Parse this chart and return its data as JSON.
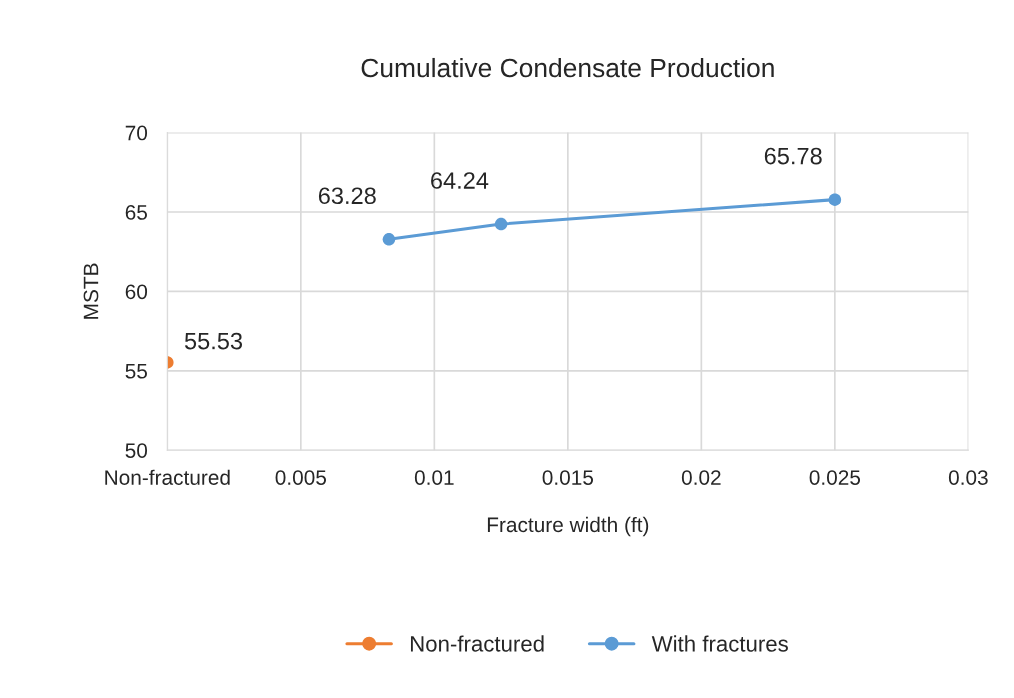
{
  "chart_data": {
    "type": "line",
    "title": "Cumulative Condensate Production",
    "xlabel": "Fracture width (ft)",
    "ylabel": "MSTB",
    "series": [
      {
        "name": "Non-fractured",
        "color": "#ed7d31",
        "x": [
          0
        ],
        "values": [
          55.53
        ]
      },
      {
        "name": "With fractures",
        "color": "#5b9bd5",
        "x": [
          0.0083,
          0.0125,
          0.025
        ],
        "values": [
          63.28,
          64.24,
          65.78
        ]
      }
    ],
    "xlim": [
      0,
      0.03
    ],
    "xticks": [
      {
        "value": 0,
        "label": "Non-fractured"
      },
      0.005,
      0.01,
      0.015,
      0.02,
      0.025,
      0.03
    ],
    "ylim": [
      50,
      70
    ],
    "yticks": [
      50,
      55,
      60,
      65,
      70
    ],
    "grid": true,
    "legend": "bottom",
    "marker": "circle",
    "line_style": "solid",
    "data_labels": true
  }
}
